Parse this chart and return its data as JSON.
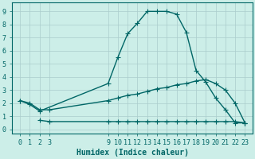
{
  "xlabel": "Humidex (Indice chaleur)",
  "bg_color": "#cceee8",
  "line_color": "#006666",
  "grid_color": "#aacccc",
  "xticks": [
    0,
    1,
    2,
    3,
    9,
    10,
    11,
    12,
    13,
    14,
    15,
    16,
    17,
    18,
    19,
    20,
    21,
    22,
    23
  ],
  "yticks": [
    0,
    1,
    2,
    3,
    4,
    5,
    6,
    7,
    8,
    9
  ],
  "ylim": [
    -0.3,
    9.7
  ],
  "xlim": [
    -0.8,
    23.8
  ],
  "line1_x": [
    0,
    1,
    2,
    9,
    10,
    11,
    12,
    13,
    14,
    15,
    16,
    17,
    18,
    19,
    20,
    21,
    22,
    23
  ],
  "line1_y": [
    2.2,
    1.9,
    1.4,
    3.5,
    5.5,
    7.3,
    8.1,
    9.0,
    9.0,
    9.0,
    8.8,
    7.4,
    4.5,
    3.6,
    2.4,
    1.5,
    0.5,
    0.5
  ],
  "line2_x": [
    0,
    1,
    2,
    3,
    9,
    10,
    11,
    12,
    13,
    14,
    15,
    16,
    17,
    18,
    19,
    20,
    21,
    22,
    23
  ],
  "line2_y": [
    2.2,
    2.0,
    1.5,
    1.5,
    2.2,
    2.4,
    2.6,
    2.7,
    2.9,
    3.1,
    3.2,
    3.4,
    3.5,
    3.7,
    3.8,
    3.5,
    3.0,
    2.0,
    0.5
  ],
  "line3_x": [
    2,
    3,
    9,
    10,
    11,
    12,
    13,
    14,
    15,
    16,
    17,
    18,
    19,
    20,
    21,
    22,
    23
  ],
  "line3_y": [
    0.7,
    0.6,
    0.6,
    0.6,
    0.6,
    0.6,
    0.6,
    0.6,
    0.6,
    0.6,
    0.6,
    0.6,
    0.6,
    0.6,
    0.6,
    0.6,
    0.5
  ],
  "marker_size": 2.5,
  "line_width": 1.0,
  "font_size": 7,
  "tick_font_size": 6
}
